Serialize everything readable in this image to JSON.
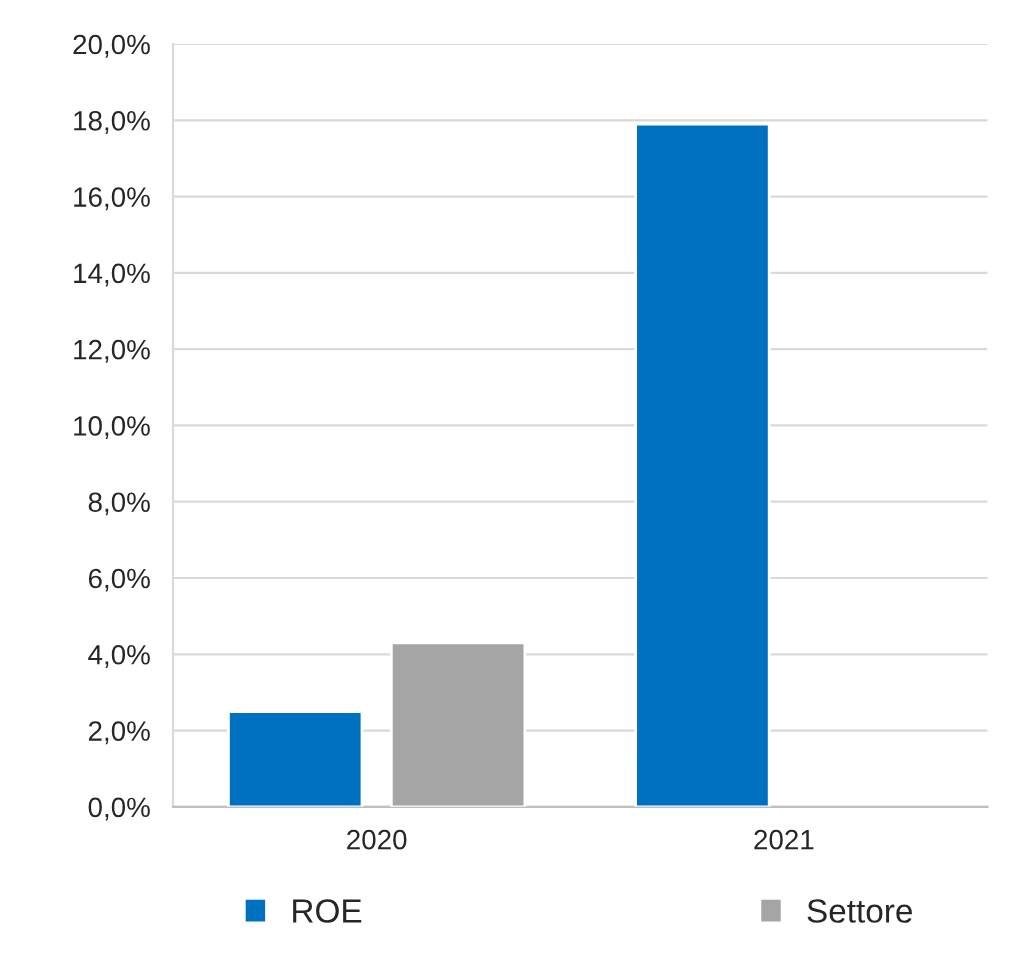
{
  "chart_data": {
    "type": "bar",
    "categories": [
      "2020",
      "2021"
    ],
    "series": [
      {
        "name": "ROE",
        "color": "#0070c0",
        "values": [
          2.5,
          17.9
        ]
      },
      {
        "name": "Settore",
        "color": "#a5a5a5",
        "values": [
          4.3,
          null
        ]
      }
    ],
    "ylim": [
      0,
      20
    ],
    "yticks": [
      {
        "value": 0,
        "label": "0,0%"
      },
      {
        "value": 2,
        "label": "2,0%"
      },
      {
        "value": 4,
        "label": "4,0%"
      },
      {
        "value": 6,
        "label": "6,0%"
      },
      {
        "value": 8,
        "label": "8,0%"
      },
      {
        "value": 10,
        "label": "10,0%"
      },
      {
        "value": 12,
        "label": "12,0%"
      },
      {
        "value": 14,
        "label": "14,0%"
      },
      {
        "value": 16,
        "label": "16,0%"
      },
      {
        "value": 18,
        "label": "18,0%"
      },
      {
        "value": 20,
        "label": "20,0%"
      }
    ],
    "grid": "y",
    "legend": "bottom"
  }
}
